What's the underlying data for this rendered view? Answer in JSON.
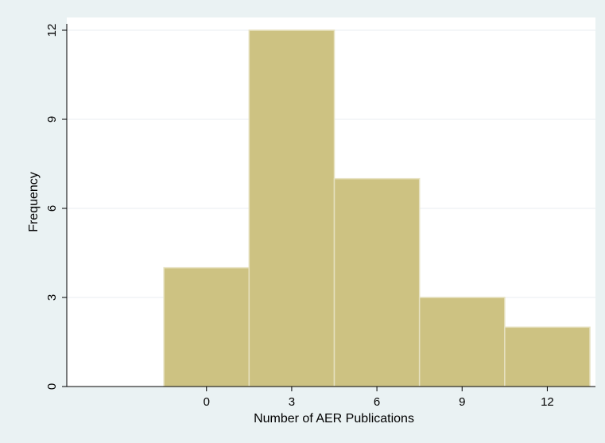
{
  "chart_data": {
    "type": "bar",
    "subtype": "histogram",
    "title": "",
    "xlabel": "Number of AER Publications",
    "ylabel": "Frequency",
    "bins": [
      {
        "from": -1.5,
        "to": 1.5,
        "value": 4
      },
      {
        "from": 1.5,
        "to": 4.5,
        "value": 12
      },
      {
        "from": 4.5,
        "to": 7.5,
        "value": 7
      },
      {
        "from": 7.5,
        "to": 10.5,
        "value": 3
      },
      {
        "from": 10.5,
        "to": 13.5,
        "value": 2
      }
    ],
    "xlim": [
      -4.5,
      13.5
    ],
    "ylim": [
      0,
      12
    ],
    "xticks": [
      0,
      3,
      6,
      9,
      12
    ],
    "yticks": [
      0,
      3,
      6,
      9,
      12
    ],
    "grid": "horizontal",
    "colors": {
      "background": "#eaf2f3",
      "plot_area": "#ffffff",
      "bar_fill": "#cdc282",
      "bar_edge": "#e6e1c0",
      "grid": "#e8eef0"
    }
  }
}
